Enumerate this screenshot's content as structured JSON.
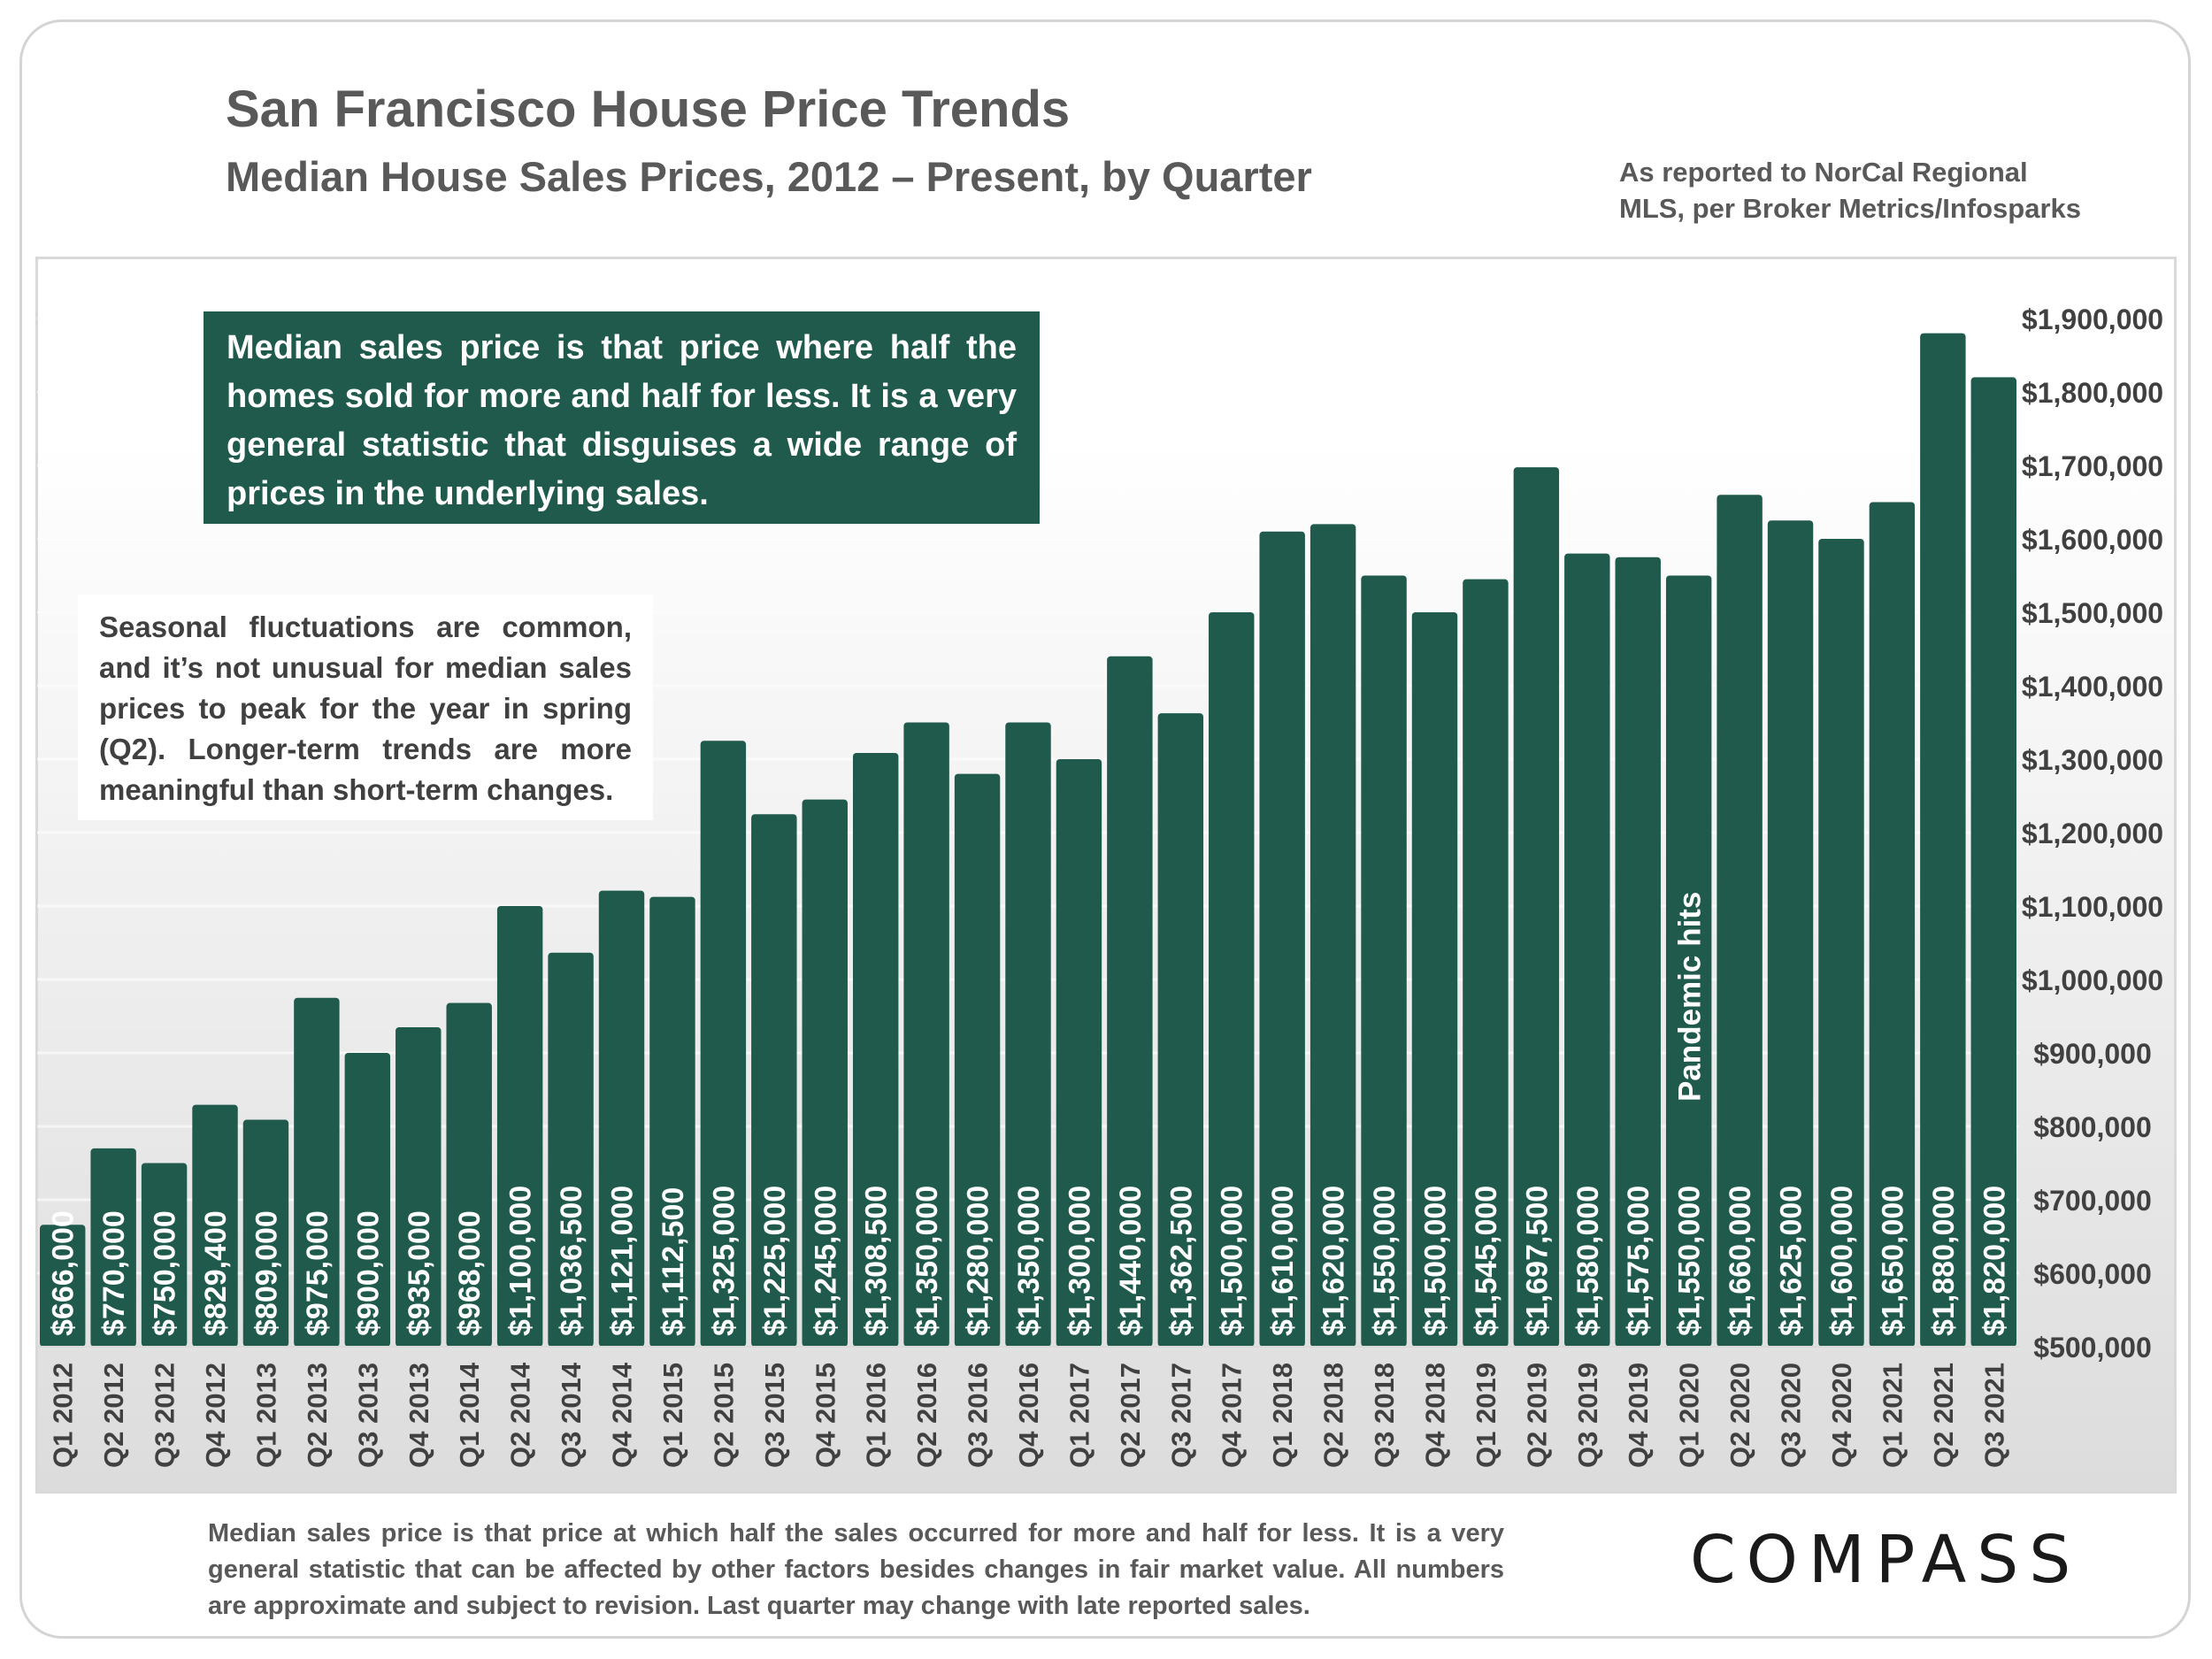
{
  "header": {
    "title": "San Francisco House Price Trends",
    "subtitle": "Median House Sales Prices, 2012 – Present, by Quarter",
    "source_line1": "As reported to NorCal Regional",
    "source_line2": "MLS, per Broker Metrics/Infosparks"
  },
  "notes": {
    "green_box": "Median sales price is that price where half the homes sold for more and half for less. It is a very general statistic that disguises a wide range of prices in the underlying sales.",
    "white_box": "Seasonal fluctuations are common, and it’s not unusual for median sales prices to peak for the year in spring (Q2). Longer-term trends are more meaningful than short-term changes."
  },
  "footer": {
    "footnote": "Median sales price is that price at which half the sales occurred for more and half for less. It is a very general statistic that can be affected by other factors besides changes in fair market value. All numbers are approximate and subject to revision. Last quarter may change with late reported sales.",
    "logo_text": "COMPASS"
  },
  "colors": {
    "bar": "#1f5a4c",
    "text_gray": "#595959"
  },
  "chart_data": {
    "type": "bar",
    "title": "San Francisco House Price Trends",
    "subtitle": "Median House Sales Prices, 2012 – Present, by Quarter",
    "xlabel": "",
    "ylabel": "",
    "ylim": [
      500000,
      1900000
    ],
    "ytick_values": [
      500000,
      600000,
      700000,
      800000,
      900000,
      1000000,
      1100000,
      1200000,
      1300000,
      1400000,
      1500000,
      1600000,
      1700000,
      1800000,
      1900000
    ],
    "ytick_labels": [
      "$500,000",
      "$600,000",
      "$700,000",
      "$800,000",
      "$900,000",
      "$1,000,000",
      "$1,100,000",
      "$1,200,000",
      "$1,300,000",
      "$1,400,000",
      "$1,500,000",
      "$1,600,000",
      "$1,700,000",
      "$1,800,000",
      "$1,900,000"
    ],
    "categories": [
      "Q1 2012",
      "Q2 2012",
      "Q3 2012",
      "Q4 2012",
      "Q1 2013",
      "Q2 2013",
      "Q3 2013",
      "Q4 2013",
      "Q1 2014",
      "Q2 2014",
      "Q3 2014",
      "Q4 2014",
      "Q1 2015",
      "Q2 2015",
      "Q3 2015",
      "Q4 2015",
      "Q1 2016",
      "Q2 2016",
      "Q3 2016",
      "Q4 2016",
      "Q1 2017",
      "Q2 2017",
      "Q3 2017",
      "Q4 2017",
      "Q1 2018",
      "Q2 2018",
      "Q3 2018",
      "Q4 2018",
      "Q1 2019",
      "Q2 2019",
      "Q3 2019",
      "Q4 2019",
      "Q1 2020",
      "Q2 2020",
      "Q3 2020",
      "Q4 2020",
      "Q1 2021",
      "Q2 2021",
      "Q3 2021"
    ],
    "values": [
      666000,
      770000,
      750000,
      829400,
      809000,
      975000,
      900000,
      935000,
      968000,
      1100000,
      1036500,
      1121000,
      1112500,
      1325000,
      1225000,
      1245000,
      1308500,
      1350000,
      1280000,
      1350000,
      1300000,
      1440000,
      1362500,
      1500000,
      1610000,
      1620000,
      1550000,
      1500000,
      1545000,
      1697500,
      1580000,
      1575000,
      1550000,
      1660000,
      1625000,
      1600000,
      1650000,
      1880000,
      1820000
    ],
    "data_labels": [
      "$666,000",
      "$770,000",
      "$750,000",
      "$829,400",
      "$809,000",
      "$975,000",
      "$900,000",
      "$935,000",
      "$968,000",
      "$1,100,000",
      "$1,036,500",
      "$1,121,000",
      "$1,112,500",
      "$1,325,000",
      "$1,225,000",
      "$1,245,000",
      "$1,308,500",
      "$1,350,000",
      "$1,280,000",
      "$1,350,000",
      "$1,300,000",
      "$1,440,000",
      "$1,362,500",
      "$1,500,000",
      "$1,610,000",
      "$1,620,000",
      "$1,550,000",
      "$1,500,000",
      "$1,545,000",
      "$1,697,500",
      "$1,580,000",
      "$1,575,000",
      "$1,550,000",
      "$1,660,000",
      "$1,625,000",
      "$1,600,000",
      "$1,650,000",
      "$1,880,000",
      "$1,820,000"
    ],
    "annotations": [
      {
        "category": "Q1 2020",
        "text": "Pandemic hits"
      }
    ],
    "grid": true,
    "y_axis_side": "right"
  }
}
